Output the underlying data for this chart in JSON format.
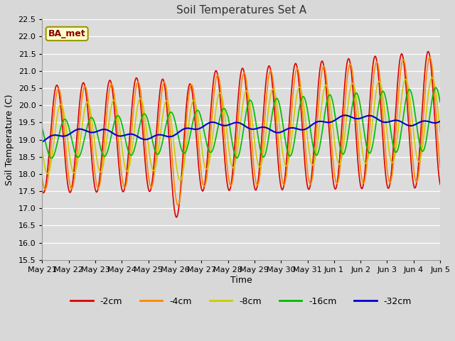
{
  "title": "Soil Temperatures Set A",
  "xlabel": "Time",
  "ylabel": "Soil Temperature (C)",
  "ylim": [
    15.5,
    22.5
  ],
  "background_color": "#d8d8d8",
  "plot_bg_color": "#dcdcdc",
  "label_annotation": "BA_met",
  "series": {
    "-2cm": {
      "color": "#dd0000",
      "lw": 1.2
    },
    "-4cm": {
      "color": "#ff8800",
      "lw": 1.2
    },
    "-8cm": {
      "color": "#cccc00",
      "lw": 1.2
    },
    "-16cm": {
      "color": "#00bb00",
      "lw": 1.2
    },
    "-32cm": {
      "color": "#0000cc",
      "lw": 1.5
    }
  },
  "xtick_labels": [
    "May 21",
    "May 22",
    "May 23",
    "May 24",
    "May 25",
    "May 26",
    "May 27",
    "May 28",
    "May 29",
    "May 30",
    "May 31",
    "Jun 1",
    "Jun 2",
    "Jun 3",
    "Jun 4",
    "Jun 5"
  ],
  "n_days": 15,
  "figsize": [
    6.4,
    4.8
  ],
  "dpi": 100
}
